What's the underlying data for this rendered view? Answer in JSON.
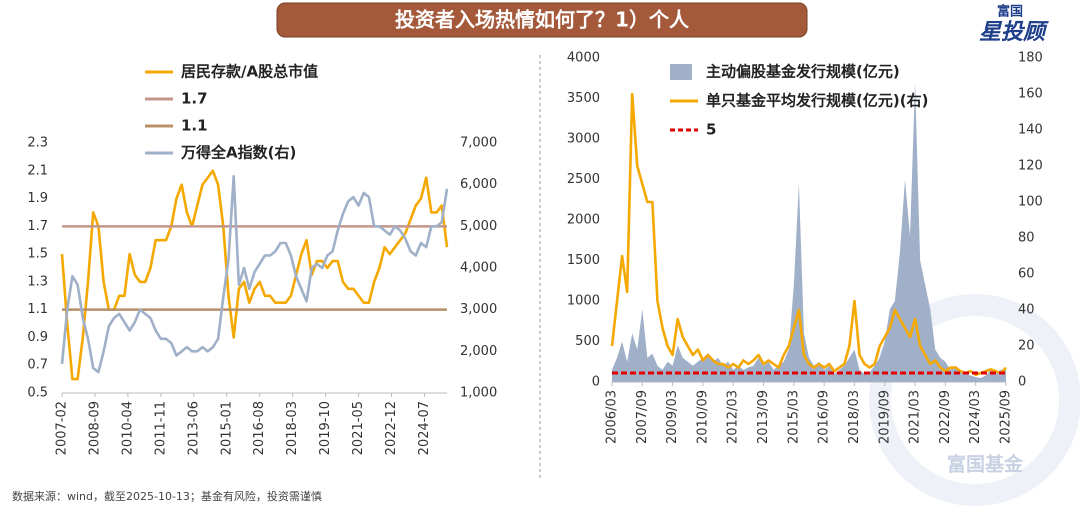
{
  "title": "投资者入场热情如何了？1）个人",
  "logo": {
    "top": "富国",
    "bottom": "星投顾"
  },
  "watermark": "富国基金",
  "footer": "数据来源：wind，截至2025-10-13；基金有风险，投资需谨慎",
  "chart_data": [
    {
      "type": "line",
      "x": [
        "2007-02",
        "2007-05",
        "2007-08",
        "2007-11",
        "2008-02",
        "2008-05",
        "2008-08",
        "2008-11",
        "2009-02",
        "2009-05",
        "2009-08",
        "2009-11",
        "2010-02",
        "2010-05",
        "2010-08",
        "2010-11",
        "2011-02",
        "2011-05",
        "2011-08",
        "2011-11",
        "2012-02",
        "2012-05",
        "2012-08",
        "2012-11",
        "2013-02",
        "2013-05",
        "2013-08",
        "2013-11",
        "2014-02",
        "2014-05",
        "2014-08",
        "2014-11",
        "2015-02",
        "2015-05",
        "2015-08",
        "2015-11",
        "2016-02",
        "2016-05",
        "2016-08",
        "2016-11",
        "2017-02",
        "2017-05",
        "2017-08",
        "2017-11",
        "2018-02",
        "2018-05",
        "2018-08",
        "2018-11",
        "2019-02",
        "2019-05",
        "2019-08",
        "2019-11",
        "2020-02",
        "2020-05",
        "2020-08",
        "2020-11",
        "2021-02",
        "2021-05",
        "2021-08",
        "2021-11",
        "2022-02",
        "2022-05",
        "2022-08",
        "2022-11",
        "2023-02",
        "2023-05",
        "2023-08",
        "2023-11",
        "2024-02",
        "2024-05",
        "2024-08",
        "2024-11",
        "2025-02",
        "2025-05",
        "2025-08"
      ],
      "xticks": [
        "2007-02",
        "2008-09",
        "2010-04",
        "2011-11",
        "2013-06",
        "2015-01",
        "2016-08",
        "2018-03",
        "2019-10",
        "2021-05",
        "2022-12",
        "2024-07"
      ],
      "ylim": [
        0.5,
        2.3
      ],
      "yticks": [
        0.5,
        0.7,
        0.9,
        1.1,
        1.3,
        1.5,
        1.7,
        1.9,
        2.1,
        2.3
      ],
      "y2lim": [
        1000,
        7000
      ],
      "y2ticks": [
        {
          "value": 1000,
          "label": "1,000"
        },
        {
          "value": 2000,
          "label": "2,000"
        },
        {
          "value": 3000,
          "label": "3,000"
        },
        {
          "value": 4000,
          "label": "4,000"
        },
        {
          "value": 5000,
          "label": "5,000"
        },
        {
          "value": 6000,
          "label": "6,000"
        },
        {
          "value": 7000,
          "label": "7,000"
        }
      ],
      "series": [
        {
          "name": "居民存款/A股总市值",
          "color": "#f5a800",
          "mark": "line",
          "values": [
            1.5,
            1.0,
            0.6,
            0.6,
            0.9,
            1.3,
            1.8,
            1.7,
            1.3,
            1.1,
            1.1,
            1.2,
            1.2,
            1.5,
            1.35,
            1.3,
            1.3,
            1.4,
            1.6,
            1.6,
            1.6,
            1.7,
            1.9,
            2.0,
            1.8,
            1.7,
            1.85,
            2.0,
            2.05,
            2.1,
            2.0,
            1.7,
            1.2,
            0.9,
            1.25,
            1.3,
            1.15,
            1.25,
            1.3,
            1.2,
            1.2,
            1.15,
            1.15,
            1.15,
            1.2,
            1.35,
            1.5,
            1.6,
            1.35,
            1.45,
            1.45,
            1.4,
            1.45,
            1.45,
            1.3,
            1.25,
            1.25,
            1.2,
            1.15,
            1.15,
            1.3,
            1.4,
            1.55,
            1.5,
            1.55,
            1.6,
            1.65,
            1.75,
            1.85,
            1.9,
            2.05,
            1.8,
            1.8,
            1.85,
            1.55
          ]
        },
        {
          "name": "1.7",
          "color": "#c4968a",
          "mark": "hline",
          "value": 1.7
        },
        {
          "name": "1.1",
          "color": "#b89068",
          "mark": "hline",
          "value": 1.1
        },
        {
          "name": "万得全A指数(右)",
          "color": "#9fb0c8",
          "mark": "line",
          "axis": "y2",
          "values": [
            1700,
            3000,
            3800,
            3600,
            2800,
            2300,
            1600,
            1500,
            2000,
            2600,
            2800,
            2900,
            2700,
            2500,
            2700,
            3000,
            2900,
            2800,
            2500,
            2300,
            2300,
            2200,
            1900,
            2000,
            2100,
            2000,
            2000,
            2100,
            2000,
            2100,
            2300,
            3300,
            4200,
            6200,
            3600,
            4000,
            3500,
            3900,
            4100,
            4300,
            4300,
            4400,
            4600,
            4600,
            4300,
            3800,
            3500,
            3200,
            4000,
            4100,
            4000,
            4300,
            4400,
            4900,
            5300,
            5600,
            5700,
            5500,
            5800,
            5700,
            5000,
            5000,
            4900,
            4800,
            5000,
            4900,
            4700,
            4400,
            4300,
            4600,
            4500,
            5000,
            5000,
            5100,
            5900
          ]
        }
      ]
    },
    {
      "type": "line",
      "x": [
        "2006/03",
        "2006/06",
        "2006/09",
        "2006/12",
        "2007/03",
        "2007/06",
        "2007/09",
        "2007/12",
        "2008/03",
        "2008/06",
        "2008/09",
        "2008/12",
        "2009/03",
        "2009/06",
        "2009/09",
        "2009/12",
        "2010/03",
        "2010/06",
        "2010/09",
        "2010/12",
        "2011/03",
        "2011/06",
        "2011/09",
        "2011/12",
        "2012/03",
        "2012/06",
        "2012/09",
        "2012/12",
        "2013/03",
        "2013/06",
        "2013/09",
        "2013/12",
        "2014/03",
        "2014/06",
        "2014/09",
        "2014/12",
        "2015/03",
        "2015/06",
        "2015/09",
        "2015/12",
        "2016/03",
        "2016/06",
        "2016/09",
        "2016/12",
        "2017/03",
        "2017/06",
        "2017/09",
        "2017/12",
        "2018/03",
        "2018/06",
        "2018/09",
        "2018/12",
        "2019/03",
        "2019/06",
        "2019/09",
        "2019/12",
        "2020/03",
        "2020/06",
        "2020/09",
        "2020/12",
        "2021/03",
        "2021/06",
        "2021/09",
        "2021/12",
        "2022/03",
        "2022/06",
        "2022/09",
        "2022/12",
        "2023/03",
        "2023/06",
        "2023/09",
        "2023/12",
        "2024/03",
        "2024/06",
        "2024/09",
        "2024/12",
        "2025/03",
        "2025/06",
        "2025/09"
      ],
      "xticks": [
        "2006/03",
        "2007/09",
        "2009/03",
        "2010/09",
        "2012/03",
        "2013/09",
        "2015/03",
        "2016/09",
        "2018/03",
        "2019/09",
        "2021/03",
        "2022/09",
        "2024/03",
        "2025/09"
      ],
      "ylim": [
        0,
        4000
      ],
      "yticks": [
        0,
        500,
        1000,
        1500,
        2000,
        2500,
        3000,
        3500,
        4000
      ],
      "y2lim": [
        0,
        180
      ],
      "y2ticks": [
        0,
        20,
        40,
        60,
        80,
        100,
        120,
        140,
        160,
        180
      ],
      "series": [
        {
          "name": "主动偏股基金发行规模(亿元)",
          "color": "#9fb0c8",
          "mark": "area",
          "values": [
            150,
            300,
            500,
            250,
            600,
            400,
            900,
            300,
            350,
            200,
            150,
            250,
            200,
            450,
            300,
            250,
            200,
            250,
            300,
            350,
            250,
            300,
            200,
            250,
            150,
            200,
            150,
            180,
            200,
            300,
            200,
            250,
            150,
            200,
            250,
            400,
            1200,
            2450,
            600,
            300,
            200,
            250,
            150,
            200,
            100,
            150,
            200,
            300,
            400,
            150,
            100,
            120,
            200,
            300,
            500,
            900,
            1000,
            1600,
            2500,
            1800,
            3700,
            1500,
            1200,
            900,
            400,
            300,
            250,
            150,
            200,
            150,
            100,
            80,
            60,
            50,
            80,
            150,
            100,
            150,
            180
          ]
        },
        {
          "name": "单只基金平均发行规模(亿元)(右)",
          "color": "#f5a800",
          "mark": "line",
          "axis": "y2",
          "values": [
            20,
            45,
            70,
            50,
            160,
            120,
            110,
            100,
            100,
            45,
            30,
            20,
            15,
            35,
            25,
            20,
            15,
            18,
            12,
            15,
            12,
            10,
            10,
            8,
            10,
            8,
            12,
            10,
            12,
            15,
            10,
            12,
            10,
            8,
            15,
            20,
            30,
            40,
            15,
            10,
            8,
            10,
            8,
            10,
            6,
            8,
            10,
            20,
            45,
            15,
            10,
            8,
            10,
            20,
            25,
            30,
            40,
            35,
            30,
            25,
            35,
            20,
            15,
            10,
            12,
            8,
            6,
            8,
            8,
            6,
            5,
            6,
            4,
            5,
            6,
            7,
            6,
            5,
            8
          ]
        },
        {
          "name": "5",
          "color": "#e00000",
          "mark": "hline",
          "axis": "y2",
          "value": 5,
          "dashed": true
        }
      ]
    }
  ]
}
